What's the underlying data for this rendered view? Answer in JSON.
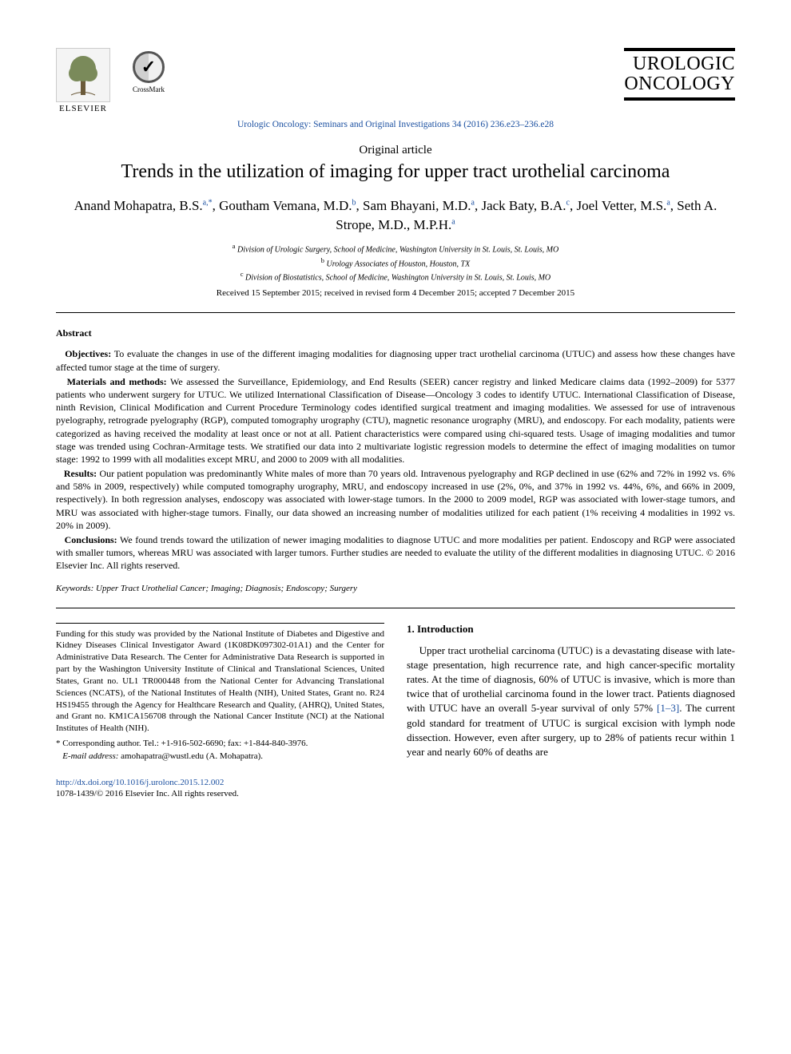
{
  "header": {
    "elsevier_label": "ELSEVIER",
    "crossmark_label": "CrossMark",
    "journal_brand_line1": "UROLOGIC",
    "journal_brand_line2": "ONCOLOGY",
    "citation": "Urologic Oncology: Seminars and Original Investigations 34 (2016) 236.e23–236.e28"
  },
  "article": {
    "type": "Original article",
    "title": "Trends in the utilization of imaging for upper tract urothelial carcinoma",
    "authors_html": "Anand Mohapatra, B.S.<sup>a,*</sup>, Goutham Vemana, M.D.<sup>b</sup>, Sam Bhayani, M.D.<sup>a</sup>, Jack Baty, B.A.<sup>c</sup>, Joel Vetter, M.S.<sup>a</sup>, Seth A. Strope, M.D., M.P.H.<sup>a</sup>",
    "affiliations": {
      "a": "Division of Urologic Surgery, School of Medicine, Washington University in St. Louis, St. Louis, MO",
      "b": "Urology Associates of Houston, Houston, TX",
      "c": "Division of Biostatistics, School of Medicine, Washington University in St. Louis, St. Louis, MO"
    },
    "dates": "Received 15 September 2015; received in revised form 4 December 2015; accepted 7 December 2015"
  },
  "abstract": {
    "heading": "Abstract",
    "objectives_label": "Objectives:",
    "objectives": "To evaluate the changes in use of the different imaging modalities for diagnosing upper tract urothelial carcinoma (UTUC) and assess how these changes have affected tumor stage at the time of surgery.",
    "methods_label": "Materials and methods:",
    "methods": "We assessed the Surveillance, Epidemiology, and End Results (SEER) cancer registry and linked Medicare claims data (1992–2009) for 5377 patients who underwent surgery for UTUC. We utilized International Classification of Disease—Oncology 3 codes to identify UTUC. International Classification of Disease, ninth Revision, Clinical Modification and Current Procedure Terminology codes identified surgical treatment and imaging modalities. We assessed for use of intravenous pyelography, retrograde pyelography (RGP), computed tomography urography (CTU), magnetic resonance urography (MRU), and endoscopy. For each modality, patients were categorized as having received the modality at least once or not at all. Patient characteristics were compared using chi-squared tests. Usage of imaging modalities and tumor stage was trended using Cochran-Armitage tests. We stratified our data into 2 multivariate logistic regression models to determine the effect of imaging modalities on tumor stage: 1992 to 1999 with all modalities except MRU, and 2000 to 2009 with all modalities.",
    "results_label": "Results:",
    "results": "Our patient population was predominantly White males of more than 70 years old. Intravenous pyelography and RGP declined in use (62% and 72% in 1992 vs. 6% and 58% in 2009, respectively) while computed tomography urography, MRU, and endoscopy increased in use (2%, 0%, and 37% in 1992 vs. 44%, 6%, and 66% in 2009, respectively). In both regression analyses, endoscopy was associated with lower-stage tumors. In the 2000 to 2009 model, RGP was associated with lower-stage tumors, and MRU was associated with higher-stage tumors. Finally, our data showed an increasing number of modalities utilized for each patient (1% receiving 4 modalities in 1992 vs. 20% in 2009).",
    "conclusions_label": "Conclusions:",
    "conclusions": "We found trends toward the utilization of newer imaging modalities to diagnose UTUC and more modalities per patient. Endoscopy and RGP were associated with smaller tumors, whereas MRU was associated with larger tumors. Further studies are needed to evaluate the utility of the different modalities in diagnosing UTUC. © 2016 Elsevier Inc. All rights reserved."
  },
  "keywords": {
    "label": "Keywords:",
    "list": "Upper Tract Urothelial Cancer; Imaging; Diagnosis; Endoscopy; Surgery"
  },
  "funding": "Funding for this study was provided by the National Institute of Diabetes and Digestive and Kidney Diseases Clinical Investigator Award (1K08DK097302-01A1) and the Center for Administrative Data Research. The Center for Administrative Data Research is supported in part by the Washington University Institute of Clinical and Translational Sciences, United States, Grant no. UL1 TR000448 from the National Center for Advancing Translational Sciences (NCATS), of the National Institutes of Health (NIH), United States, Grant no. R24 HS19455 through the Agency for Healthcare Research and Quality, (AHRQ), United States, and Grant no. KM1CA156708 through the National Cancer Institute (NCI) at the National Institutes of Health (NIH).",
  "corresponding": "* Corresponding author. Tel.: +1-916-502-6690; fax: +1-844-840-3976.",
  "email_label": "E-mail address:",
  "email_value": "amohapatra@wustl.edu (A. Mohapatra).",
  "intro": {
    "heading": "1. Introduction",
    "body_pre": "Upper tract urothelial carcinoma (UTUC) is a devastating disease with late-stage presentation, high recurrence rate, and high cancer-specific mortality rates. At the time of diagnosis, 60% of UTUC is invasive, which is more than twice that of urothelial carcinoma found in the lower tract. Patients diagnosed with UTUC have an overall 5-year survival of only 57% ",
    "ref": "[1–3]",
    "body_post": ". The current gold standard for treatment of UTUC is surgical excision with lymph node dissection. However, even after surgery, up to 28% of patients recur within 1 year and nearly 60% of deaths are"
  },
  "doi": {
    "url": "http://dx.doi.org/10.1016/j.urolonc.2015.12.002",
    "copyright": "1078-1439/© 2016 Elsevier Inc. All rights reserved."
  },
  "colors": {
    "link": "#1a4fa0",
    "text": "#000000",
    "background": "#ffffff"
  },
  "typography": {
    "title_fontsize_pt": 18,
    "body_fontsize_pt": 10,
    "abstract_fontsize_pt": 9
  }
}
